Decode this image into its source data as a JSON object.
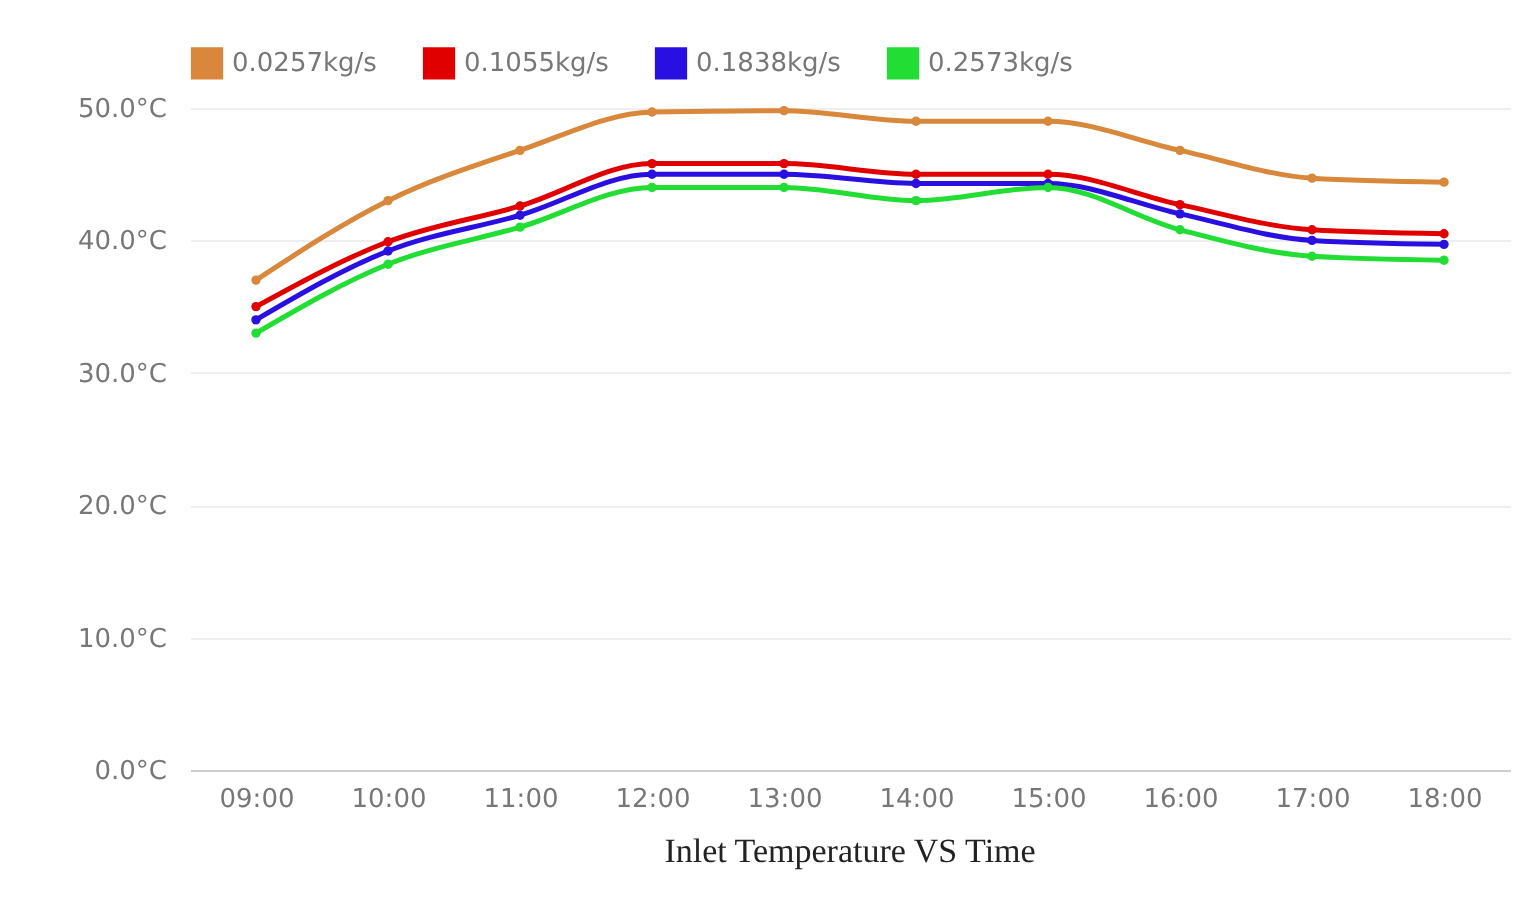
{
  "chart_data": {
    "type": "line",
    "title": "Inlet Temperature VS Time",
    "categories": [
      "09:00",
      "10:00",
      "11:00",
      "12:00",
      "13:00",
      "14:00",
      "15:00",
      "16:00",
      "17:00",
      "18:00"
    ],
    "series": [
      {
        "name": "0.0257kg/s",
        "color": "#d9873a",
        "values": [
          37,
          43,
          46.8,
          49.7,
          49.8,
          49,
          49,
          46.8,
          44.7,
          44.4
        ]
      },
      {
        "name": "0.1055kg/s",
        "color": "#e00000",
        "values": [
          35,
          39.9,
          42.6,
          45.8,
          45.8,
          45,
          45,
          42.7,
          40.8,
          40.5
        ]
      },
      {
        "name": "0.1838kg/s",
        "color": "#2a10e0",
        "values": [
          34,
          39.2,
          41.9,
          45,
          45,
          44.3,
          44.3,
          42,
          40,
          39.7
        ]
      },
      {
        "name": "0.2573kg/s",
        "color": "#22dd33",
        "values": [
          33,
          38.2,
          41,
          44,
          44,
          43,
          44,
          40.8,
          38.8,
          38.5
        ]
      }
    ],
    "ylim": [
      0,
      50
    ],
    "yticks": [
      {
        "value": 0,
        "label": "0.0°C"
      },
      {
        "value": 10,
        "label": "10.0°C"
      },
      {
        "value": 20,
        "label": "20.0°C"
      },
      {
        "value": 30,
        "label": "30.0°C"
      },
      {
        "value": 40,
        "label": "40.0°C"
      },
      {
        "value": 50,
        "label": "50.0°C"
      }
    ],
    "grid": "y",
    "legend": "top",
    "marker": "circle",
    "line_style": "solid"
  }
}
